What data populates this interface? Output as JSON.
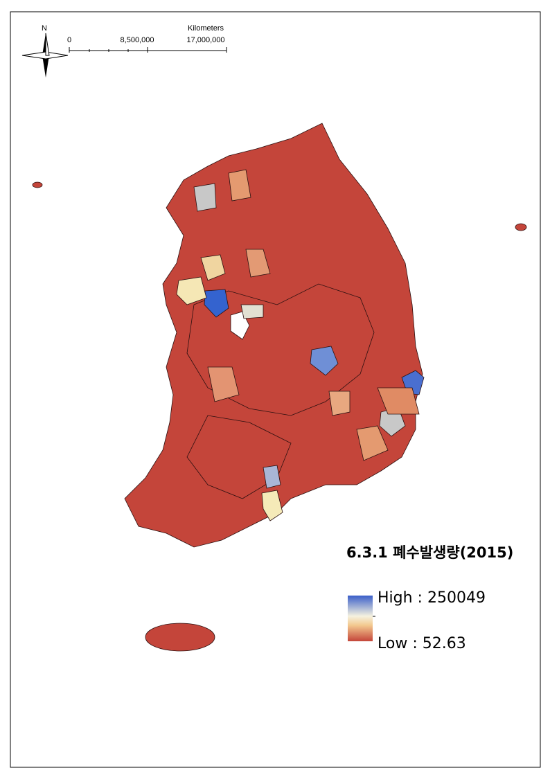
{
  "north_arrow": {
    "label": "N"
  },
  "scale_bar": {
    "unit": "Kilometers",
    "labels": [
      "0",
      "8,500,000",
      "17,000,000"
    ]
  },
  "title": "6.3.1 폐수발생량(2015)",
  "legend": {
    "high": "High : 250049",
    "low": "Low : 52.63"
  }
}
